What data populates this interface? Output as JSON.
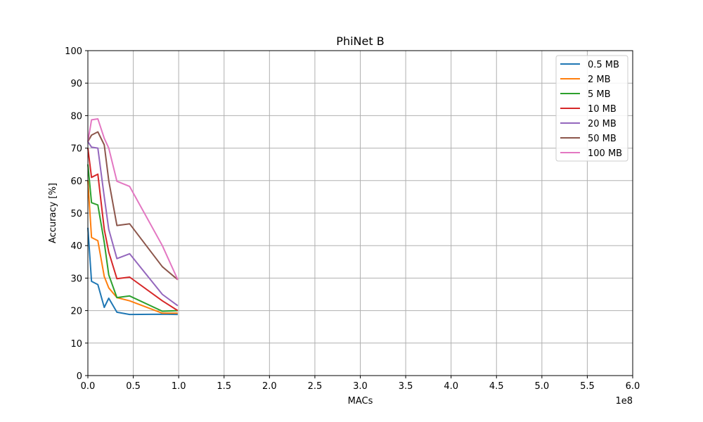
{
  "chart_data": {
    "type": "line",
    "title": "PhiNet B",
    "xlabel": "MACs",
    "ylabel": "Accuracy [%]",
    "x_offset_label": "1e8",
    "xlim": [
      0,
      6.0
    ],
    "ylim": [
      0,
      100
    ],
    "x_ticks": [
      "0.0",
      "0.5",
      "1.0",
      "1.5",
      "2.0",
      "2.5",
      "3.0",
      "3.5",
      "4.0",
      "4.5",
      "5.0",
      "5.5",
      "6.0"
    ],
    "y_ticks": [
      "0",
      "10",
      "20",
      "30",
      "40",
      "50",
      "60",
      "70",
      "80",
      "90",
      "100"
    ],
    "grid": true,
    "legend_position": "top-right",
    "x": [
      0.0,
      0.04,
      0.11,
      0.18,
      0.23,
      0.32,
      0.46,
      0.82,
      0.99
    ],
    "series": [
      {
        "name": "0.5 MB",
        "color": "#1f77b4",
        "values": [
          45.5,
          29.0,
          28.0,
          21.0,
          23.8,
          19.5,
          18.8,
          18.9,
          18.8
        ]
      },
      {
        "name": "2 MB",
        "color": "#ff7f0e",
        "values": [
          60.0,
          42.5,
          41.5,
          30.5,
          27.0,
          24.0,
          23.0,
          19.2,
          19.2
        ]
      },
      {
        "name": "5 MB",
        "color": "#2ca02c",
        "values": [
          65.0,
          53.2,
          52.5,
          41.0,
          31.0,
          24.0,
          24.5,
          19.8,
          20.0
        ]
      },
      {
        "name": "10 MB",
        "color": "#d62728",
        "values": [
          70.0,
          61.0,
          62.0,
          45.0,
          38.0,
          29.8,
          30.3,
          23.0,
          20.0
        ]
      },
      {
        "name": "20 MB",
        "color": "#9467bd",
        "values": [
          72.0,
          70.3,
          70.0,
          55.0,
          45.0,
          36.0,
          37.5,
          25.0,
          21.5
        ]
      },
      {
        "name": "50 MB",
        "color": "#8c564b",
        "values": [
          72.0,
          74.0,
          75.0,
          71.0,
          60.0,
          46.2,
          46.7,
          33.5,
          29.5
        ]
      },
      {
        "name": "100 MB",
        "color": "#e377c2",
        "values": [
          72.0,
          78.7,
          79.0,
          73.0,
          70.0,
          59.8,
          58.2,
          40.0,
          29.5
        ]
      }
    ]
  }
}
